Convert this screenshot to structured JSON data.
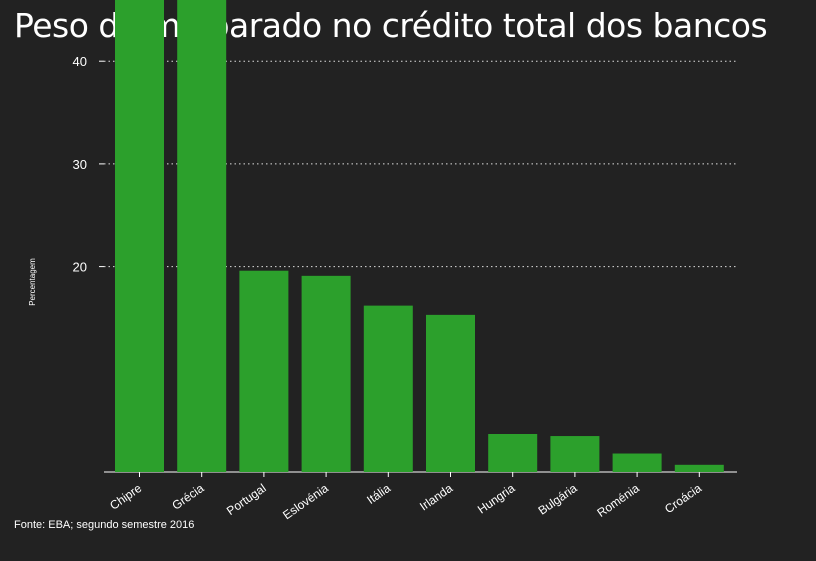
{
  "title": "Peso do malparado no crédito total dos bancos",
  "source": "Fonte: EBA; segundo semestre 2016",
  "colors": {
    "background": "#222222",
    "bar": "#2ca02c",
    "text": "#ffffff",
    "grid": "#ffffff"
  },
  "chart_data": {
    "type": "bar",
    "title": "Peso do malparado no crédito total dos bancos",
    "xlabel": "",
    "ylabel": "Percentagem",
    "categories": [
      "Chipre",
      "Grécia",
      "Portugal",
      "Eslovénia",
      "Itália",
      "Irlanda",
      "Hungria",
      "Bulgária",
      "Roménia",
      "Croácia"
    ],
    "values": [
      47.5,
      47.0,
      19.6,
      19.1,
      16.2,
      15.3,
      3.7,
      3.5,
      1.8,
      0.7
    ],
    "yticks": [
      20,
      30,
      40
    ],
    "ytick_labels": [
      "20",
      "30",
      "40"
    ],
    "ylim": [
      0,
      49
    ],
    "grid": "horizontal dotted",
    "legend": "none"
  }
}
